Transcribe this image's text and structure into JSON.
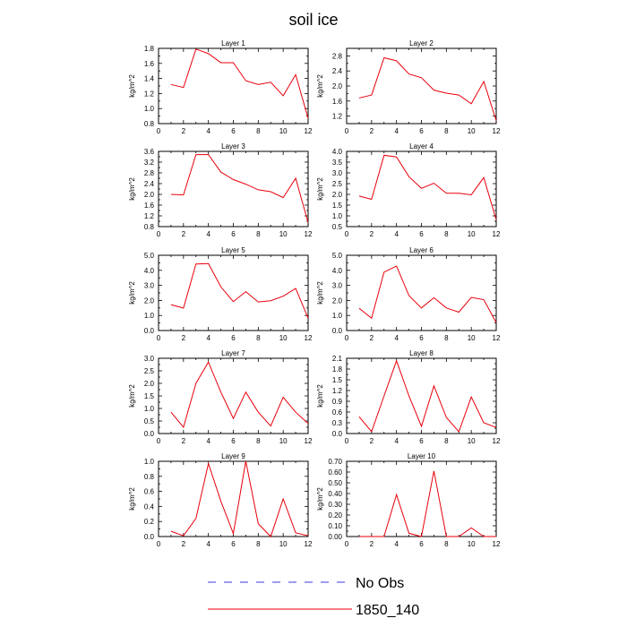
{
  "title": "soil ice",
  "colors": {
    "series": "#e8000b",
    "obs": "#3b3bdb",
    "axis": "#000000"
  },
  "chart_data": [
    {
      "type": "line",
      "title": "Layer 1",
      "ylabel": "kg/m^2",
      "x": [
        1,
        2,
        3,
        4,
        5,
        6,
        7,
        8,
        9,
        10,
        11,
        12
      ],
      "xticks": [
        "0",
        "2",
        "4",
        "6",
        "8",
        "10",
        "12"
      ],
      "xlim": [
        0,
        12
      ],
      "ylim": [
        0.8,
        1.8
      ],
      "yticks": [
        "0.8",
        "1.0",
        "1.2",
        "1.4",
        "1.6",
        "1.8"
      ],
      "series": [
        {
          "name": "1850_140",
          "values": [
            1.32,
            1.28,
            1.79,
            1.73,
            1.61,
            1.61,
            1.37,
            1.32,
            1.35,
            1.17,
            1.45,
            0.87
          ]
        }
      ]
    },
    {
      "type": "line",
      "title": "Layer 2",
      "ylabel": "kg/m^2",
      "x": [
        1,
        2,
        3,
        4,
        5,
        6,
        7,
        8,
        9,
        10,
        11,
        12
      ],
      "xticks": [
        "0",
        "2",
        "4",
        "6",
        "8",
        "10",
        "12"
      ],
      "xlim": [
        0,
        12
      ],
      "ylim": [
        1.0,
        3.0
      ],
      "yticks": [
        "1.2",
        "1.6",
        "2.0",
        "2.4",
        "2.8"
      ],
      "series": [
        {
          "name": "1850_140",
          "values": [
            1.68,
            1.76,
            2.75,
            2.67,
            2.32,
            2.22,
            1.89,
            1.81,
            1.76,
            1.53,
            2.12,
            1.08
          ]
        }
      ]
    },
    {
      "type": "line",
      "title": "Layer 3",
      "ylabel": "kg/m^2",
      "x": [
        1,
        2,
        3,
        4,
        5,
        6,
        7,
        8,
        9,
        10,
        11,
        12
      ],
      "xticks": [
        "0",
        "2",
        "4",
        "6",
        "8",
        "10",
        "12"
      ],
      "xlim": [
        0,
        12
      ],
      "ylim": [
        0.8,
        3.6
      ],
      "yticks": [
        "0.8",
        "1.2",
        "1.6",
        "2.0",
        "2.4",
        "2.8",
        "3.2",
        "3.6"
      ],
      "series": [
        {
          "name": "1850_140",
          "values": [
            2.0,
            1.98,
            3.48,
            3.48,
            2.83,
            2.55,
            2.38,
            2.17,
            2.1,
            1.88,
            2.6,
            0.95
          ]
        }
      ]
    },
    {
      "type": "line",
      "title": "Layer 4",
      "ylabel": "kg/m^2",
      "x": [
        1,
        2,
        3,
        4,
        5,
        6,
        7,
        8,
        9,
        10,
        11,
        12
      ],
      "xticks": [
        "0",
        "2",
        "4",
        "6",
        "8",
        "10",
        "12"
      ],
      "xlim": [
        0,
        12
      ],
      "ylim": [
        0.5,
        4.0
      ],
      "yticks": [
        "0.5",
        "1.0",
        "1.5",
        "2.0",
        "2.5",
        "3.0",
        "3.5",
        "4.0"
      ],
      "series": [
        {
          "name": "1850_140",
          "values": [
            1.92,
            1.77,
            3.82,
            3.74,
            2.82,
            2.28,
            2.52,
            2.05,
            2.05,
            1.98,
            2.78,
            0.82
          ]
        }
      ]
    },
    {
      "type": "line",
      "title": "Layer 5",
      "ylabel": "kg/m^2",
      "x": [
        1,
        2,
        3,
        4,
        5,
        6,
        7,
        8,
        9,
        10,
        11,
        12
      ],
      "xticks": [
        "0",
        "2",
        "4",
        "6",
        "8",
        "10",
        "12"
      ],
      "xlim": [
        0,
        12
      ],
      "ylim": [
        0.0,
        5.0
      ],
      "yticks": [
        "0.0",
        "1.0",
        "2.0",
        "3.0",
        "4.0",
        "5.0"
      ],
      "series": [
        {
          "name": "1850_140",
          "values": [
            1.72,
            1.49,
            4.42,
            4.45,
            2.9,
            1.92,
            2.58,
            1.9,
            1.98,
            2.28,
            2.8,
            0.82
          ]
        }
      ]
    },
    {
      "type": "line",
      "title": "Layer 6",
      "ylabel": "kg/m^2",
      "x": [
        1,
        2,
        3,
        4,
        5,
        6,
        7,
        8,
        9,
        10,
        11,
        12
      ],
      "xticks": [
        "0",
        "2",
        "4",
        "6",
        "8",
        "10",
        "12"
      ],
      "xlim": [
        0,
        12
      ],
      "ylim": [
        0.0,
        5.0
      ],
      "yticks": [
        "0.0",
        "1.0",
        "2.0",
        "3.0",
        "4.0",
        "5.0"
      ],
      "series": [
        {
          "name": "1850_140",
          "values": [
            1.48,
            0.82,
            3.88,
            4.28,
            2.32,
            1.5,
            2.18,
            1.5,
            1.22,
            2.2,
            2.05,
            0.52
          ]
        }
      ]
    },
    {
      "type": "line",
      "title": "Layer 7",
      "ylabel": "kg/m^2",
      "x": [
        1,
        2,
        3,
        4,
        5,
        6,
        7,
        8,
        9,
        10,
        11,
        12
      ],
      "xticks": [
        "0",
        "2",
        "4",
        "6",
        "8",
        "10",
        "12"
      ],
      "xlim": [
        0,
        12
      ],
      "ylim": [
        0.0,
        3.0
      ],
      "yticks": [
        "0.0",
        "0.5",
        "1.0",
        "1.5",
        "2.0",
        "2.5",
        "3.0"
      ],
      "series": [
        {
          "name": "1850_140",
          "values": [
            0.85,
            0.25,
            2.0,
            2.85,
            1.65,
            0.6,
            1.65,
            0.85,
            0.3,
            1.45,
            0.85,
            0.4
          ]
        }
      ]
    },
    {
      "type": "line",
      "title": "Layer 8",
      "ylabel": "kg/m^2",
      "x": [
        1,
        2,
        3,
        4,
        5,
        6,
        7,
        8,
        9,
        10,
        11,
        12
      ],
      "xticks": [
        "0",
        "2",
        "4",
        "6",
        "8",
        "10",
        "12"
      ],
      "xlim": [
        0,
        12
      ],
      "ylim": [
        0.0,
        2.1
      ],
      "yticks": [
        "0.0",
        "0.3",
        "0.6",
        "0.9",
        "1.2",
        "1.5",
        "1.8",
        "2.1"
      ],
      "series": [
        {
          "name": "1850_140",
          "values": [
            0.47,
            0.05,
            1.05,
            2.03,
            1.05,
            0.2,
            1.33,
            0.45,
            0.05,
            1.02,
            0.3,
            0.17
          ]
        }
      ]
    },
    {
      "type": "line",
      "title": "Layer 9",
      "ylabel": "kg/m^2",
      "x": [
        1,
        2,
        3,
        4,
        5,
        6,
        7,
        8,
        9,
        10,
        11,
        12
      ],
      "xticks": [
        "0",
        "2",
        "4",
        "6",
        "8",
        "10",
        "12"
      ],
      "xlim": [
        0,
        12
      ],
      "ylim": [
        0.0,
        1.0
      ],
      "yticks": [
        "0.0",
        "0.2",
        "0.4",
        "0.6",
        "0.8",
        "1.0"
      ],
      "series": [
        {
          "name": "1850_140",
          "values": [
            0.07,
            0.01,
            0.24,
            0.97,
            0.47,
            0.04,
            1.0,
            0.17,
            0.0,
            0.5,
            0.05,
            0.01
          ]
        }
      ]
    },
    {
      "type": "line",
      "title": "Layer 10",
      "ylabel": "kg/m^2",
      "x": [
        1,
        2,
        3,
        4,
        5,
        6,
        7,
        8,
        9,
        10,
        11,
        12
      ],
      "xticks": [
        "0",
        "2",
        "4",
        "6",
        "8",
        "10",
        "12"
      ],
      "xlim": [
        0,
        12
      ],
      "ylim": [
        0.0,
        0.7
      ],
      "yticks": [
        "0.00",
        "0.10",
        "0.20",
        "0.30",
        "0.40",
        "0.50",
        "0.60",
        "0.70"
      ],
      "series": [
        {
          "name": "1850_140",
          "values": [
            0.0,
            0.0,
            0.0,
            0.39,
            0.03,
            0.0,
            0.61,
            0.0,
            0.0,
            0.08,
            0.0,
            0.0
          ]
        }
      ]
    }
  ],
  "legend": [
    {
      "label": "No Obs",
      "style": "dashed",
      "color": "#3b3bdb"
    },
    {
      "label": "1850_140",
      "style": "solid",
      "color": "#e8000b"
    }
  ]
}
